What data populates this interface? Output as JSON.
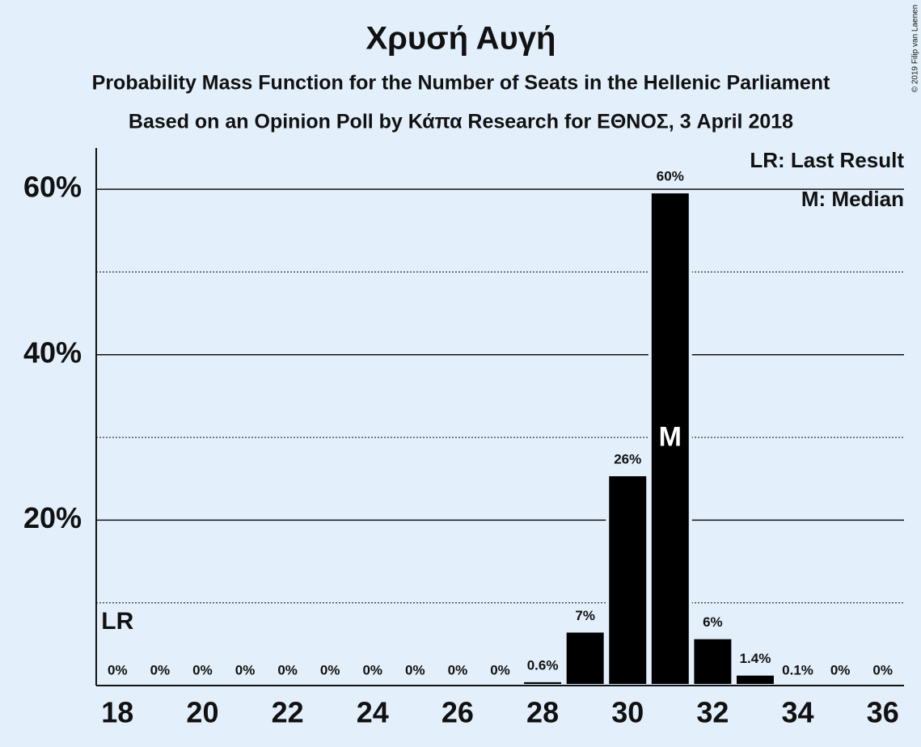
{
  "chart_data": {
    "type": "bar",
    "title": "Χρυσή Αυγή",
    "subtitle": "Probability Mass Function for the Number of Seats in the Hellenic Parliament",
    "subtitle2": "Based on an Opinion Poll by Κάπα Research for ΕΘΝΟΣ, 3 April 2018",
    "copyright": "© 2019 Filip van Laenen",
    "x": [
      18,
      19,
      20,
      21,
      22,
      23,
      24,
      25,
      26,
      27,
      28,
      29,
      30,
      31,
      32,
      33,
      34,
      35,
      36
    ],
    "values": [
      0,
      0,
      0,
      0,
      0,
      0,
      0,
      0,
      0,
      0,
      0.6,
      6.6,
      25.5,
      59.7,
      5.8,
      1.4,
      0.1,
      0,
      0
    ],
    "value_labels": [
      "0%",
      "0%",
      "0%",
      "0%",
      "0%",
      "0%",
      "0%",
      "0%",
      "0%",
      "0%",
      "0.6%",
      "7%",
      "26%",
      "60%",
      "6%",
      "1.4%",
      "0.1%",
      "0%",
      "0%"
    ],
    "color": "#000000",
    "xlim": [
      17.5,
      36.5
    ],
    "xticks": [
      18,
      20,
      22,
      24,
      26,
      28,
      30,
      32,
      34,
      36
    ],
    "ylim": [
      0,
      65
    ],
    "yticks": [
      {
        "value": 20,
        "label": "20%"
      },
      {
        "value": 40,
        "label": "40%"
      },
      {
        "value": 60,
        "label": "60%"
      }
    ],
    "minor_yticks": [
      10,
      30,
      50
    ],
    "grid": true,
    "last_result": 18,
    "last_result_label": "LR",
    "median": 31,
    "median_label": "M",
    "legend": [
      "LR: Last Result",
      "M: Median"
    ]
  }
}
